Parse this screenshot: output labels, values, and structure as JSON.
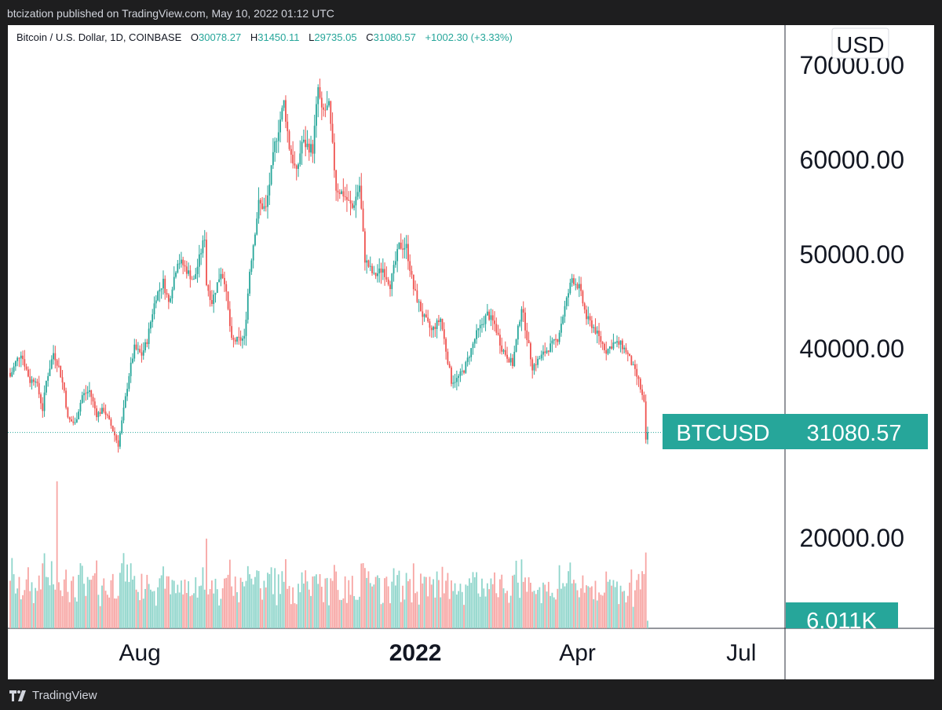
{
  "header": {
    "published_by": "btcization published on TradingView.com, May 10, 2022 01:12 UTC"
  },
  "legend": {
    "symbol": "Bitcoin / U.S. Dollar, 1D, COINBASE",
    "open_label": "O",
    "open": "30078.27",
    "high_label": "H",
    "high": "31450.11",
    "low_label": "L",
    "low": "29735.05",
    "close_label": "C",
    "close": "31080.57",
    "change": "+1002.30 (+3.33%)"
  },
  "footer": {
    "brand": "TradingView"
  },
  "colors": {
    "up": "#26a69a",
    "down": "#ef5350",
    "up_volume": "#8fd5cb",
    "down_volume": "#f7a5a3",
    "background": "#ffffff",
    "frame": "#1e1e1f",
    "text": "#131722"
  },
  "chart_data": {
    "type": "candlestick",
    "currency_label": "USD",
    "price_label": {
      "symbol": "BTCUSD",
      "value": "31080.57"
    },
    "volume_label": "6.011K",
    "y_ticks": [
      "70000.00",
      "60000.00",
      "50000.00",
      "40000.00",
      "20000.00"
    ],
    "x_ticks": [
      {
        "label": "Aug",
        "date": "2021-08-01",
        "bold": false
      },
      {
        "label": "2022",
        "date": "2022-01-01",
        "bold": true
      },
      {
        "label": "Apr",
        "date": "2022-04-01",
        "bold": false
      },
      {
        "label": "Jul",
        "date": "2022-07-01",
        "bold": false
      }
    ],
    "date_range": [
      "2021-05-21",
      "2022-05-10"
    ],
    "y_range": [
      29000,
      70000
    ],
    "last_close": 31080.57,
    "series_close_waypoints": [
      [
        "2021-05-21",
        37000
      ],
      [
        "2021-05-24",
        38500
      ],
      [
        "2021-05-27",
        39500
      ],
      [
        "2021-06-01",
        36500
      ],
      [
        "2021-06-04",
        36800
      ],
      [
        "2021-06-08",
        33500
      ],
      [
        "2021-06-10",
        36500
      ],
      [
        "2021-06-14",
        39500
      ],
      [
        "2021-06-17",
        38000
      ],
      [
        "2021-06-20",
        35500
      ],
      [
        "2021-06-22",
        32500
      ],
      [
        "2021-06-26",
        32000
      ],
      [
        "2021-06-30",
        35000
      ],
      [
        "2021-07-04",
        35500
      ],
      [
        "2021-07-08",
        33000
      ],
      [
        "2021-07-12",
        33500
      ],
      [
        "2021-07-16",
        31800
      ],
      [
        "2021-07-20",
        29800
      ],
      [
        "2021-07-22",
        32200
      ],
      [
        "2021-07-26",
        37200
      ],
      [
        "2021-07-29",
        40000
      ],
      [
        "2021-08-02",
        39300
      ],
      [
        "2021-08-05",
        40800
      ],
      [
        "2021-08-08",
        43800
      ],
      [
        "2021-08-10",
        45500
      ],
      [
        "2021-08-14",
        47000
      ],
      [
        "2021-08-17",
        44800
      ],
      [
        "2021-08-22",
        49300
      ],
      [
        "2021-08-25",
        48800
      ],
      [
        "2021-08-31",
        47100
      ],
      [
        "2021-09-06",
        51800
      ],
      [
        "2021-09-07",
        46800
      ],
      [
        "2021-09-10",
        44900
      ],
      [
        "2021-09-15",
        48100
      ],
      [
        "2021-09-17",
        47200
      ],
      [
        "2021-09-21",
        40700
      ],
      [
        "2021-09-28",
        41000
      ],
      [
        "2021-10-01",
        48200
      ],
      [
        "2021-10-06",
        55300
      ],
      [
        "2021-10-10",
        54700
      ],
      [
        "2021-10-15",
        61500
      ],
      [
        "2021-10-20",
        66000
      ],
      [
        "2021-10-23",
        61300
      ],
      [
        "2021-10-27",
        58400
      ],
      [
        "2021-10-30",
        61800
      ],
      [
        "2021-11-05",
        61000
      ],
      [
        "2021-11-08",
        67500
      ],
      [
        "2021-11-10",
        64900
      ],
      [
        "2021-11-14",
        65500
      ],
      [
        "2021-11-18",
        56900
      ],
      [
        "2021-11-22",
        56300
      ],
      [
        "2021-11-27",
        54800
      ],
      [
        "2021-12-01",
        57200
      ],
      [
        "2021-12-04",
        49400
      ],
      [
        "2021-12-09",
        47600
      ],
      [
        "2021-12-14",
        48400
      ],
      [
        "2021-12-18",
        46700
      ],
      [
        "2021-12-23",
        50800
      ],
      [
        "2021-12-27",
        50700
      ],
      [
        "2021-12-31",
        46300
      ],
      [
        "2022-01-05",
        43500
      ],
      [
        "2022-01-10",
        41800
      ],
      [
        "2022-01-15",
        43100
      ],
      [
        "2022-01-21",
        36500
      ],
      [
        "2022-01-24",
        36700
      ],
      [
        "2022-01-28",
        37700
      ],
      [
        "2022-02-04",
        41500
      ],
      [
        "2022-02-10",
        43600
      ],
      [
        "2022-02-14",
        42500
      ],
      [
        "2022-02-18",
        40000
      ],
      [
        "2022-02-24",
        38300
      ],
      [
        "2022-03-01",
        44400
      ],
      [
        "2022-03-07",
        38000
      ],
      [
        "2022-03-14",
        39600
      ],
      [
        "2022-03-21",
        41000
      ],
      [
        "2022-03-25",
        44300
      ],
      [
        "2022-03-29",
        47400
      ],
      [
        "2022-04-02",
        46400
      ],
      [
        "2022-04-06",
        43200
      ],
      [
        "2022-04-10",
        42200
      ],
      [
        "2022-04-13",
        41100
      ],
      [
        "2022-04-17",
        39700
      ],
      [
        "2022-04-21",
        40500
      ],
      [
        "2022-04-25",
        40400
      ],
      [
        "2022-04-28",
        39700
      ],
      [
        "2022-05-01",
        38400
      ],
      [
        "2022-05-05",
        36500
      ],
      [
        "2022-05-08",
        34100
      ],
      [
        "2022-05-09",
        30078
      ],
      [
        "2022-05-10",
        31080
      ]
    ]
  }
}
